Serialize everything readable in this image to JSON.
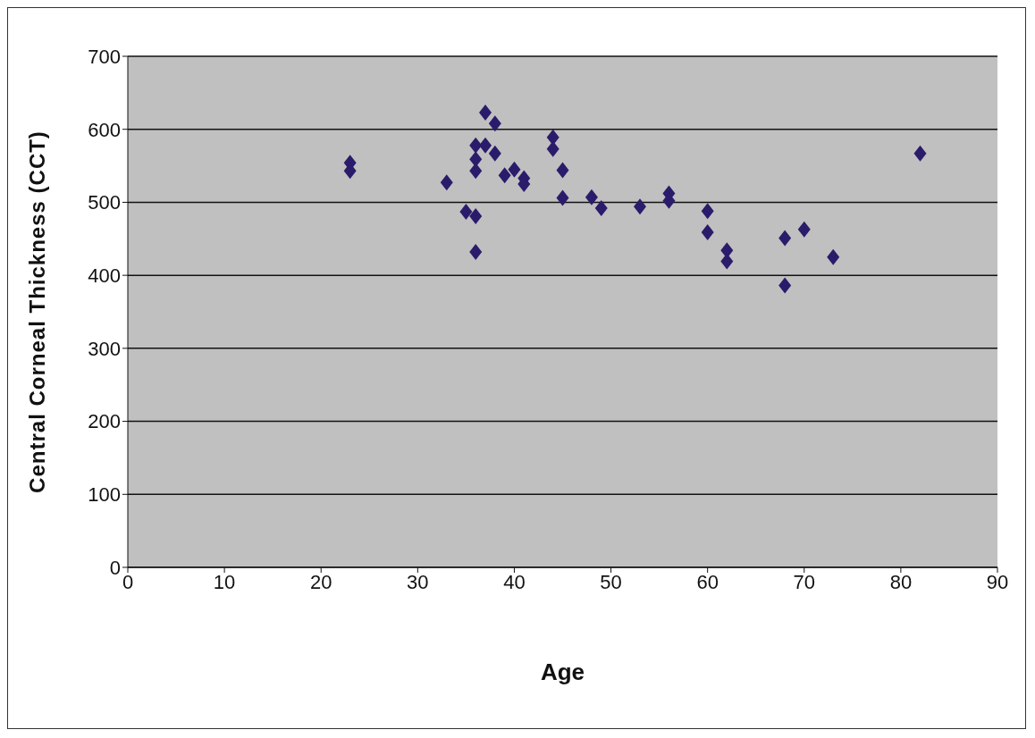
{
  "chart_data": {
    "type": "scatter",
    "xlabel": "Age",
    "ylabel": "Central Corneal Thickness (CCT)",
    "x": [
      23,
      23,
      33,
      35,
      36,
      36,
      36,
      36,
      36,
      37,
      37,
      38,
      38,
      39,
      40,
      41,
      41,
      44,
      44,
      45,
      45,
      48,
      49,
      53,
      56,
      56,
      60,
      60,
      62,
      62,
      68,
      68,
      70,
      73,
      82
    ],
    "series": [
      {
        "color": "#2b1b6b",
        "values": [
          554,
          543,
          527,
          487,
          481,
          432,
          578,
          559,
          543,
          623,
          578,
          608,
          567,
          537,
          545,
          533,
          525,
          589,
          573,
          544,
          506,
          507,
          492,
          494,
          512,
          502,
          488,
          459,
          434,
          419,
          451,
          386,
          463,
          425,
          567
        ]
      }
    ],
    "xlim": [
      0,
      90
    ],
    "xticks": [
      0,
      10,
      20,
      30,
      40,
      50,
      60,
      70,
      80,
      90
    ],
    "ylim": [
      0,
      700
    ],
    "yticks": [
      0,
      100,
      200,
      300,
      400,
      500,
      600,
      700
    ],
    "grid": "y",
    "marker": "diamond"
  }
}
